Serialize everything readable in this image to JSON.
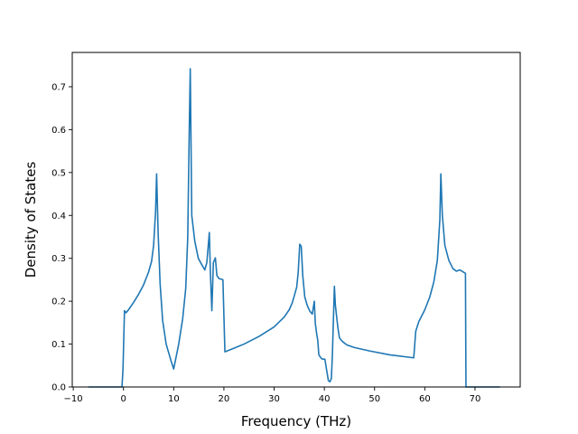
{
  "chart_data": {
    "type": "line",
    "title": "",
    "xlabel": "Frequency (THz)",
    "ylabel": "Density of States",
    "xlim": [
      -10.2,
      79.0
    ],
    "ylim": [
      0.0,
      0.78
    ],
    "xticks": [
      -10,
      0,
      10,
      20,
      30,
      40,
      50,
      60,
      70
    ],
    "xtick_labels": [
      "−10",
      "0",
      "10",
      "20",
      "30",
      "40",
      "50",
      "60",
      "70"
    ],
    "yticks": [
      0.0,
      0.1,
      0.2,
      0.3,
      0.4,
      0.5,
      0.6,
      0.7
    ],
    "ytick_labels": [
      "0.0",
      "0.1",
      "0.2",
      "0.3",
      "0.4",
      "0.5",
      "0.6",
      "0.7"
    ],
    "grid": false,
    "legend": "none",
    "color": "#1f77b4",
    "series": [
      {
        "x": [
          -7.0,
          -0.3,
          -0.1,
          0.2,
          0.5,
          1.0,
          2.0,
          3.0,
          4.0,
          5.0,
          5.6,
          6.0,
          6.4,
          6.6,
          6.9,
          7.3,
          7.8,
          8.5,
          9.5,
          10.0,
          11.0,
          11.8,
          12.4,
          12.8,
          13.1,
          13.3,
          13.6,
          14.2,
          14.9,
          15.6,
          16.2,
          16.6,
          17.1,
          17.3,
          17.6,
          17.9,
          18.3,
          18.6,
          19.0,
          19.8,
          20.2,
          21.5,
          24.0,
          27.0,
          30.0,
          32.0,
          33.0,
          33.6,
          34.0,
          34.5,
          34.8,
          35.1,
          35.4,
          35.7,
          36.1,
          36.6,
          37.1,
          37.6,
          38.0,
          38.2,
          38.5,
          38.7,
          38.9,
          39.3,
          39.6,
          40.1,
          40.8,
          41.1,
          41.4,
          41.6,
          42.0,
          42.2,
          42.7,
          43.0,
          43.3,
          43.7,
          44.5,
          46.0,
          49.0,
          53.0,
          57.8,
          58.2,
          58.8,
          60.0,
          61.0,
          61.8,
          62.5,
          63.0,
          63.2,
          63.5,
          64.0,
          64.8,
          65.6,
          66.3,
          67.0,
          67.4,
          68.1,
          68.2,
          68.6,
          69.0,
          75.0
        ],
        "y": [
          0.0,
          0.0,
          0.04,
          0.178,
          0.173,
          0.18,
          0.197,
          0.216,
          0.238,
          0.268,
          0.293,
          0.33,
          0.41,
          0.497,
          0.36,
          0.24,
          0.155,
          0.1,
          0.06,
          0.042,
          0.1,
          0.16,
          0.23,
          0.35,
          0.6,
          0.742,
          0.4,
          0.34,
          0.3,
          0.285,
          0.273,
          0.29,
          0.36,
          0.27,
          0.178,
          0.29,
          0.301,
          0.26,
          0.253,
          0.25,
          0.082,
          0.088,
          0.1,
          0.118,
          0.14,
          0.163,
          0.18,
          0.196,
          0.212,
          0.233,
          0.268,
          0.333,
          0.328,
          0.26,
          0.21,
          0.19,
          0.177,
          0.17,
          0.2,
          0.148,
          0.122,
          0.108,
          0.075,
          0.068,
          0.065,
          0.065,
          0.015,
          0.012,
          0.02,
          0.075,
          0.235,
          0.19,
          0.138,
          0.115,
          0.11,
          0.105,
          0.098,
          0.092,
          0.084,
          0.075,
          0.068,
          0.13,
          0.152,
          0.18,
          0.21,
          0.245,
          0.295,
          0.39,
          0.497,
          0.4,
          0.33,
          0.295,
          0.276,
          0.27,
          0.273,
          0.27,
          0.265,
          0.0,
          0.0,
          0.0,
          0.0
        ]
      }
    ]
  }
}
